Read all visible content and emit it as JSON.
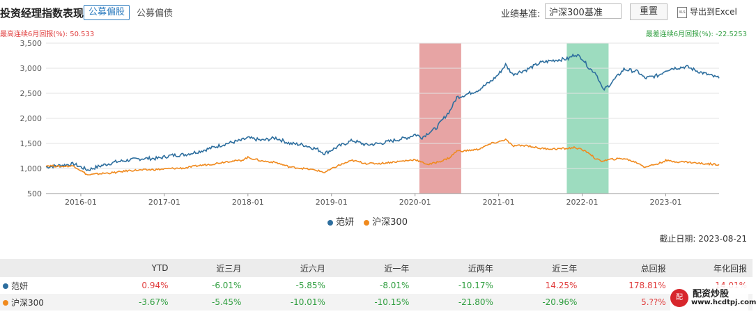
{
  "header": {
    "title": "投资经理指数表现",
    "tab_active": "公募偏股",
    "tab_other": "公募偏债",
    "benchmark_label": "业绩基准:",
    "benchmark_value": "沪深300基准",
    "reset_label": "重置",
    "export_label": "导出到Excel",
    "export_icon_text": "XLS"
  },
  "annotations": {
    "max_drawup": "最高连续6月回报(%): 50.533",
    "max_drawdown": "最差连续6月回报(%): -22.5253"
  },
  "chart_data": {
    "type": "line",
    "y_ticks": [
      "3,500",
      "3,000",
      "2,500",
      "2,000",
      "1,500",
      "1,000",
      "500"
    ],
    "ylim": [
      500,
      3500
    ],
    "x_ticks": [
      "2016-01",
      "2017-01",
      "2018-01",
      "2019-01",
      "2020-01",
      "2021-01",
      "2022-01",
      "2023-01"
    ],
    "xlim": [
      "2015-08",
      "2023-08-21"
    ],
    "grid": "horizontal",
    "legend_position": "bottom",
    "series": [
      {
        "name": "范妍",
        "color": "#2d6e9e",
        "points": [
          [
            "2015-08",
            1030
          ],
          [
            "2015-10",
            1060
          ],
          [
            "2015-12",
            1090
          ],
          [
            "2016-02",
            970
          ],
          [
            "2016-04",
            1060
          ],
          [
            "2016-06",
            1130
          ],
          [
            "2016-08",
            1170
          ],
          [
            "2016-10",
            1200
          ],
          [
            "2016-12",
            1200
          ],
          [
            "2017-02",
            1260
          ],
          [
            "2017-04",
            1280
          ],
          [
            "2017-06",
            1340
          ],
          [
            "2017-08",
            1420
          ],
          [
            "2017-10",
            1500
          ],
          [
            "2017-12",
            1560
          ],
          [
            "2018-01",
            1610
          ],
          [
            "2018-03",
            1560
          ],
          [
            "2018-05",
            1610
          ],
          [
            "2018-07",
            1500
          ],
          [
            "2018-09",
            1470
          ],
          [
            "2018-11",
            1380
          ],
          [
            "2018-12",
            1300
          ],
          [
            "2019-02",
            1440
          ],
          [
            "2019-04",
            1560
          ],
          [
            "2019-06",
            1470
          ],
          [
            "2019-08",
            1500
          ],
          [
            "2019-10",
            1560
          ],
          [
            "2019-12",
            1620
          ],
          [
            "2020-01",
            1680
          ],
          [
            "2020-02",
            1620
          ],
          [
            "2020-03",
            1720
          ],
          [
            "2020-04",
            1800
          ],
          [
            "2020-05",
            1980
          ],
          [
            "2020-06",
            2150
          ],
          [
            "2020-07",
            2420
          ],
          [
            "2020-08",
            2460
          ],
          [
            "2020-10",
            2560
          ],
          [
            "2020-12",
            2750
          ],
          [
            "2021-01",
            2880
          ],
          [
            "2021-02",
            3070
          ],
          [
            "2021-03",
            2880
          ],
          [
            "2021-05",
            2970
          ],
          [
            "2021-07",
            3110
          ],
          [
            "2021-09",
            3160
          ],
          [
            "2021-11",
            3190
          ],
          [
            "2021-12",
            3280
          ],
          [
            "2022-01",
            3200
          ],
          [
            "2022-02",
            3000
          ],
          [
            "2022-03",
            2900
          ],
          [
            "2022-04",
            2560
          ],
          [
            "2022-05",
            2680
          ],
          [
            "2022-07",
            2980
          ],
          [
            "2022-09",
            2930
          ],
          [
            "2022-10",
            2800
          ],
          [
            "2022-12",
            2860
          ],
          [
            "2023-01",
            2960
          ],
          [
            "2023-02",
            3000
          ],
          [
            "2023-04",
            3030
          ],
          [
            "2023-06",
            2920
          ],
          [
            "2023-08-21",
            2800
          ]
        ]
      },
      {
        "name": "沪深300",
        "color": "#f08a1e",
        "points": [
          [
            "2015-08",
            1060
          ],
          [
            "2015-10",
            1040
          ],
          [
            "2015-12",
            1050
          ],
          [
            "2016-02",
            870
          ],
          [
            "2016-04",
            900
          ],
          [
            "2016-06",
            920
          ],
          [
            "2016-08",
            960
          ],
          [
            "2016-10",
            970
          ],
          [
            "2016-12",
            980
          ],
          [
            "2017-02",
            1000
          ],
          [
            "2017-04",
            1010
          ],
          [
            "2017-06",
            1060
          ],
          [
            "2017-08",
            1090
          ],
          [
            "2017-10",
            1140
          ],
          [
            "2017-12",
            1160
          ],
          [
            "2018-01",
            1220
          ],
          [
            "2018-03",
            1150
          ],
          [
            "2018-05",
            1120
          ],
          [
            "2018-07",
            1030
          ],
          [
            "2018-09",
            1000
          ],
          [
            "2018-11",
            960
          ],
          [
            "2018-12",
            920
          ],
          [
            "2019-02",
            1060
          ],
          [
            "2019-04",
            1160
          ],
          [
            "2019-06",
            1100
          ],
          [
            "2019-08",
            1100
          ],
          [
            "2019-10",
            1130
          ],
          [
            "2019-12",
            1160
          ],
          [
            "2020-01",
            1180
          ],
          [
            "2020-02",
            1120
          ],
          [
            "2020-03",
            1080
          ],
          [
            "2020-04",
            1120
          ],
          [
            "2020-05",
            1160
          ],
          [
            "2020-06",
            1220
          ],
          [
            "2020-07",
            1350
          ],
          [
            "2020-08",
            1350
          ],
          [
            "2020-10",
            1380
          ],
          [
            "2020-12",
            1500
          ],
          [
            "2021-01",
            1530
          ],
          [
            "2021-02",
            1580
          ],
          [
            "2021-03",
            1450
          ],
          [
            "2021-05",
            1460
          ],
          [
            "2021-07",
            1400
          ],
          [
            "2021-09",
            1390
          ],
          [
            "2021-11",
            1400
          ],
          [
            "2021-12",
            1420
          ],
          [
            "2022-01",
            1370
          ],
          [
            "2022-02",
            1310
          ],
          [
            "2022-03",
            1180
          ],
          [
            "2022-04",
            1150
          ],
          [
            "2022-05",
            1180
          ],
          [
            "2022-07",
            1200
          ],
          [
            "2022-09",
            1110
          ],
          [
            "2022-10",
            1030
          ],
          [
            "2022-12",
            1100
          ],
          [
            "2023-01",
            1160
          ],
          [
            "2023-02",
            1140
          ],
          [
            "2023-04",
            1130
          ],
          [
            "2023-06",
            1100
          ],
          [
            "2023-08-21",
            1080
          ]
        ]
      }
    ],
    "highlights": [
      {
        "label": "max_6m",
        "start": "2020-01-20",
        "end": "2020-07-20",
        "color": "#d35a5a"
      },
      {
        "label": "min_6m",
        "start": "2021-10-25",
        "end": "2022-04-25",
        "color": "#4dc08a"
      }
    ]
  },
  "legend": {
    "items": [
      {
        "label": "范妍",
        "color": "#2d6e9e"
      },
      {
        "label": "沪深300",
        "color": "#f08a1e"
      }
    ]
  },
  "cutoff": "截止日期:  2023-08-21",
  "table": {
    "headers": [
      "",
      "YTD",
      "近三月",
      "近六月",
      "近一年",
      "近两年",
      "近三年",
      "总回报",
      "年化回报"
    ],
    "rows": [
      {
        "name": "范妍",
        "color": "#2d6e9e",
        "values": [
          "0.94%",
          "-6.01%",
          "-5.85%",
          "-8.01%",
          "-10.17%",
          "14.25%",
          "178.81%",
          "14.01%"
        ]
      },
      {
        "name": "沪深300",
        "color": "#f08a1e",
        "values": [
          "-3.67%",
          "-5.45%",
          "-10.01%",
          "-10.15%",
          "-21.80%",
          "-20.96%",
          "5.??%",
          ""
        ]
      }
    ]
  },
  "watermark": {
    "logo_text": "配",
    "name": "配资炒股",
    "url": "www.hcdtpj.com"
  }
}
